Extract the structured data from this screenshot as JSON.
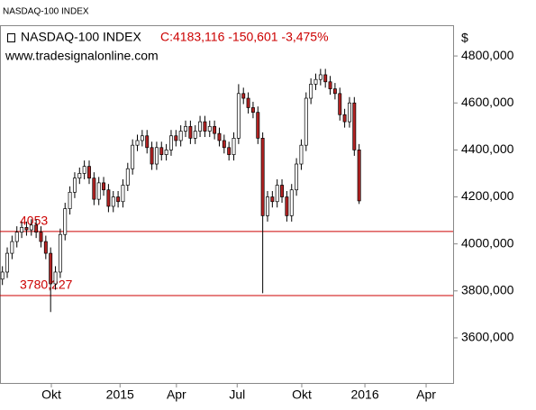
{
  "chart_data": {
    "type": "candlestick",
    "window_title": "NASDAQ-100 INDEX",
    "name": "NASDAQ-100 INDEX",
    "last_label": "C:4183,116 -150,601 -3,475%",
    "source": "www.tradesignalonline.com",
    "currency": "$",
    "up_color": "#ffffff",
    "down_color": "#b22222",
    "line_color": "#000000",
    "level_color": "#cc0000",
    "close": [
      3880,
      3960,
      4010,
      4050,
      4070,
      4060,
      4080,
      4050,
      4010,
      3960,
      3830,
      3880,
      4040,
      4150,
      4220,
      4280,
      4300,
      4330,
      4280,
      4190,
      4260,
      4230,
      4160,
      4200,
      4180,
      4250,
      4320,
      4420,
      4440,
      4460,
      4410,
      4340,
      4410,
      4380,
      4400,
      4460,
      4440,
      4480,
      4500,
      4450,
      4480,
      4520,
      4480,
      4500,
      4470,
      4440,
      4410,
      4380,
      4450,
      4640,
      4620,
      4580,
      4560,
      4450,
      4120,
      4200,
      4180,
      4250,
      4200,
      4120,
      4230,
      4340,
      4420,
      4620,
      4680,
      4700,
      4720,
      4690,
      4660,
      4640,
      4550,
      4520,
      4600,
      4400,
      4183.116
    ],
    "open": [
      3850,
      3880,
      3960,
      4010,
      4050,
      4070,
      4060,
      4080,
      4050,
      4010,
      3960,
      3830,
      3880,
      4040,
      4150,
      4220,
      4280,
      4300,
      4330,
      4280,
      4190,
      4260,
      4230,
      4160,
      4200,
      4180,
      4250,
      4320,
      4420,
      4440,
      4460,
      4410,
      4340,
      4410,
      4380,
      4400,
      4460,
      4440,
      4480,
      4500,
      4450,
      4480,
      4520,
      4480,
      4500,
      4470,
      4440,
      4410,
      4380,
      4450,
      4640,
      4620,
      4580,
      4560,
      4450,
      4120,
      4200,
      4180,
      4250,
      4200,
      4120,
      4230,
      4340,
      4420,
      4620,
      4680,
      4700,
      4720,
      4690,
      4660,
      4640,
      4550,
      4520,
      4600,
      4400
    ],
    "high": [
      3905,
      3985,
      4035,
      4075,
      4095,
      4095,
      4105,
      4105,
      4075,
      4035,
      3985,
      3905,
      4065,
      4175,
      4245,
      4305,
      4325,
      4355,
      4355,
      4305,
      4285,
      4285,
      4255,
      4225,
      4225,
      4275,
      4345,
      4445,
      4465,
      4485,
      4485,
      4435,
      4435,
      4435,
      4425,
      4485,
      4485,
      4505,
      4525,
      4525,
      4505,
      4545,
      4545,
      4525,
      4525,
      4495,
      4465,
      4435,
      4475,
      4680,
      4665,
      4645,
      4605,
      4585,
      4475,
      4225,
      4225,
      4275,
      4275,
      4225,
      4255,
      4365,
      4445,
      4645,
      4705,
      4725,
      4745,
      4745,
      4715,
      4685,
      4665,
      4575,
      4625,
      4625,
      4425
    ],
    "low": [
      3825,
      3855,
      3935,
      3985,
      4025,
      4035,
      4035,
      4025,
      3985,
      3935,
      3710,
      3805,
      3855,
      4015,
      4125,
      4195,
      4255,
      4275,
      4255,
      4165,
      4165,
      4205,
      4135,
      4135,
      4155,
      4155,
      4225,
      4295,
      4395,
      4415,
      4385,
      4315,
      4315,
      4355,
      4355,
      4375,
      4415,
      4415,
      4455,
      4425,
      4425,
      4455,
      4455,
      4455,
      4445,
      4415,
      4385,
      4355,
      4355,
      4425,
      4595,
      4555,
      4535,
      4425,
      3790,
      4095,
      4155,
      4155,
      4175,
      4095,
      4095,
      4205,
      4315,
      4395,
      4595,
      4655,
      4675,
      4665,
      4635,
      4615,
      4525,
      4495,
      4495,
      4375,
      4170
    ],
    "xlim": [
      0,
      94
    ],
    "xticks": [
      {
        "value": 10.65,
        "label": "Okt"
      },
      {
        "value": 24.9,
        "label": "2015"
      },
      {
        "value": 36.6,
        "label": "Apr"
      },
      {
        "value": 49.2,
        "label": "Jul"
      },
      {
        "value": 62.6,
        "label": "Okt"
      },
      {
        "value": 75.7,
        "label": "2016"
      },
      {
        "value": 88.4,
        "label": "Apr"
      }
    ],
    "ylim": [
      3408,
      4927
    ],
    "yticks": [
      {
        "value": 3600,
        "label": "3600,000"
      },
      {
        "value": 3800,
        "label": "3800,000"
      },
      {
        "value": 4000,
        "label": "4000,000"
      },
      {
        "value": 4200,
        "label": "4200,000"
      },
      {
        "value": 4400,
        "label": "4400,000"
      },
      {
        "value": 4600,
        "label": "4600,000"
      },
      {
        "value": 4800,
        "label": "4800,000"
      }
    ],
    "levels": [
      {
        "value": 4053,
        "label": "4053"
      },
      {
        "value": 3780.227,
        "label": "3780,227"
      }
    ]
  }
}
